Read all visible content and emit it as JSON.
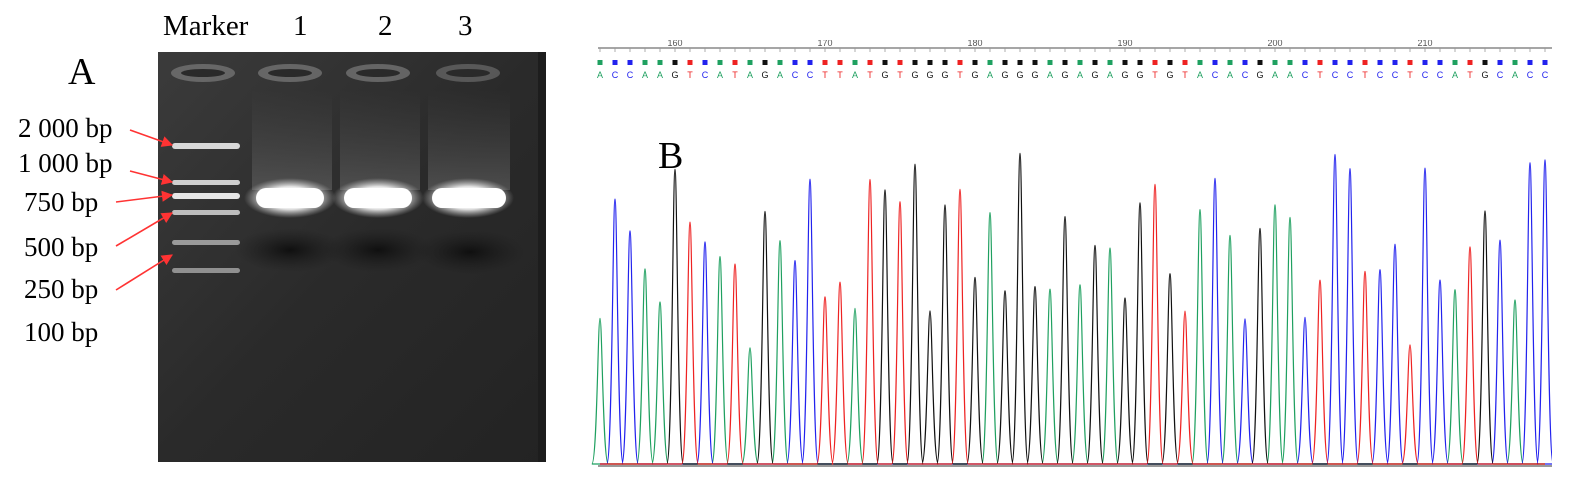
{
  "panel_a": {
    "panel_letter": "A",
    "lane_labels": [
      "Marker",
      "1",
      "2",
      "3"
    ],
    "ladder_labels": [
      "2 000 bp",
      "1 000 bp",
      "750 bp",
      "500 bp",
      "250 bp",
      "100 bp"
    ],
    "pointer_color": "#ff3333"
  },
  "panel_b": {
    "panel_letter": "B",
    "ruler_numbers": [
      "160",
      "170",
      "180",
      "190",
      "200",
      "210"
    ],
    "sequence": "ACCAAGTCATAGACCTTATGTGGGTGAGGGAGAGAGGTGTACACGAACTCCTCCTCCATGCACC",
    "base_colors": {
      "A": "#1fa060",
      "C": "#2222ee",
      "G": "#111111",
      "T": "#ee2222"
    }
  }
}
